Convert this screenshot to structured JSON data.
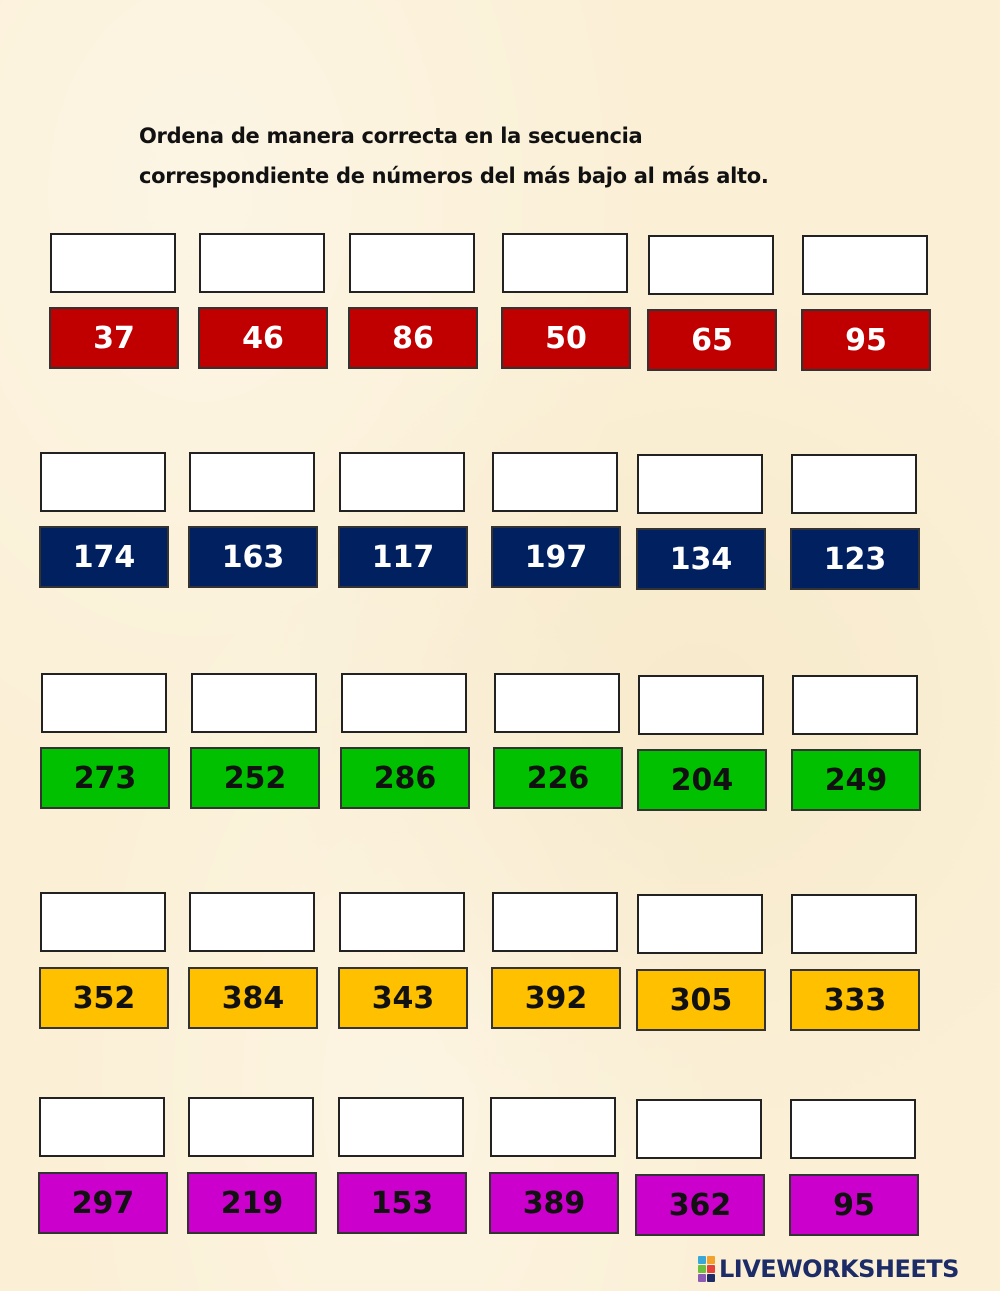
{
  "instructions": {
    "line1": "Ordena de manera correcta en la secuencia",
    "line2": "correspondiente de números del más bajo al más alto."
  },
  "rows": [
    {
      "color": "#c00000",
      "text_color": "#ffffff",
      "numbers": [
        "37",
        "46",
        "86",
        "50",
        "65",
        "95"
      ]
    },
    {
      "color": "#002060",
      "text_color": "#ffffff",
      "numbers": [
        "174",
        "163",
        "117",
        "197",
        "134",
        "123"
      ]
    },
    {
      "color": "#00c000",
      "text_color": "#111111",
      "numbers": [
        "273",
        "252",
        "286",
        "226",
        "204",
        "249"
      ]
    },
    {
      "color": "#ffc000",
      "text_color": "#111111",
      "numbers": [
        "352",
        "384",
        "343",
        "392",
        "305",
        "333"
      ]
    },
    {
      "color": "#cc00cc",
      "text_color": "#111111",
      "numbers": [
        "297",
        "219",
        "153",
        "389",
        "362",
        "95"
      ]
    }
  ],
  "logo": {
    "text": "LIVEWORKSHEETS",
    "icon": "liveworksheets-logo-icon",
    "colors": [
      "#3aa7d9",
      "#f2a12c",
      "#6cbf3f",
      "#e5413a",
      "#8e5bb4",
      "#1d2c66"
    ]
  }
}
